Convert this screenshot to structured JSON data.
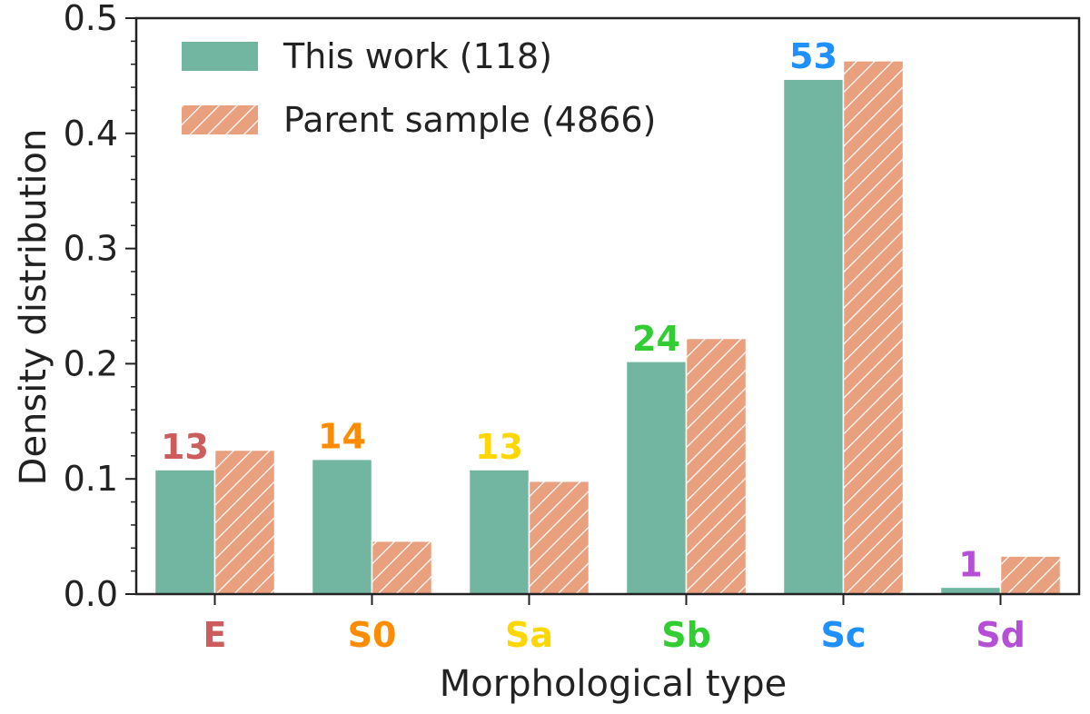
{
  "chart_data": {
    "type": "bar",
    "xlabel": "Morphological type",
    "ylabel": "Density distribution",
    "ylim": [
      0,
      0.5
    ],
    "yticks": [
      "0.0",
      "0.1",
      "0.2",
      "0.3",
      "0.4",
      "0.5"
    ],
    "categories": [
      "E",
      "S0",
      "Sa",
      "Sb",
      "Sc",
      "Sd"
    ],
    "category_colors": [
      "#cd5c5c",
      "#ff8c00",
      "#ffd700",
      "#32cd32",
      "#1e90ff",
      "#b44fd6"
    ],
    "counts": [
      "13",
      "14",
      "13",
      "24",
      "53",
      "1"
    ],
    "series": [
      {
        "name": "This work (118)",
        "color": "#72b5a0",
        "hatch": false,
        "values": [
          0.108,
          0.117,
          0.108,
          0.202,
          0.447,
          0.006
        ]
      },
      {
        "name": "Parent sample (4866)",
        "color": "#e9a07f",
        "hatch": true,
        "values": [
          0.125,
          0.046,
          0.098,
          0.222,
          0.463,
          0.033
        ]
      }
    ],
    "legend_position": "top-left",
    "grid": false
  }
}
